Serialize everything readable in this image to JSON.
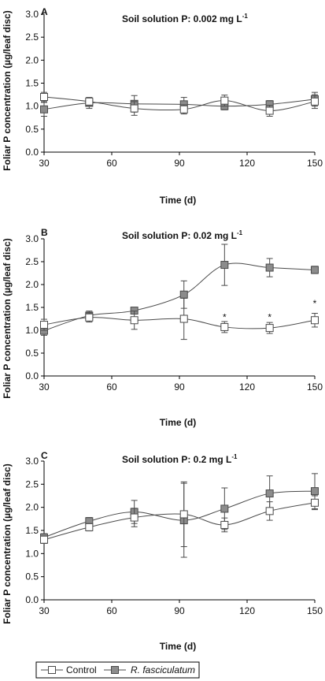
{
  "chart_data": [
    {
      "type": "line",
      "panel_label": "A",
      "title": "Soil solution P: 0.002 mg L",
      "title_superscript": "-1",
      "ylabel": "Foliar P concentration (µg/leaf disc)",
      "xlabel": "Time (d)",
      "xlim": [
        30,
        150
      ],
      "ylim": [
        0.0,
        3.0
      ],
      "xticks": [
        "30",
        "60",
        "90",
        "120",
        "150"
      ],
      "yticks": [
        "0.0",
        "0.5",
        "1.0",
        "1.5",
        "2.0",
        "2.5",
        "3.0"
      ],
      "x": [
        30,
        50,
        70,
        92,
        110,
        130,
        150
      ],
      "series": [
        {
          "name": "Control",
          "marker": "open-square",
          "values": [
            1.2,
            1.1,
            0.95,
            0.93,
            1.12,
            0.9,
            1.1
          ],
          "err": [
            0.1,
            0.08,
            0.15,
            0.1,
            0.12,
            0.12,
            0.15
          ]
        },
        {
          "name": "R. fasciculatum",
          "marker": "filled-square",
          "values": [
            0.93,
            1.07,
            1.05,
            1.04,
            1.0,
            1.04,
            1.15
          ],
          "err": [
            0.15,
            0.12,
            0.18,
            0.15,
            0.08,
            0.08,
            0.15
          ]
        }
      ],
      "annotations": []
    },
    {
      "type": "line",
      "panel_label": "B",
      "title": "Soil solution P: 0.02 mg L",
      "title_superscript": "-1",
      "ylabel": "Foliar P concentration (µg/leaf disc)",
      "xlabel": "Time (d)",
      "xlim": [
        30,
        150
      ],
      "ylim": [
        0.0,
        3.0
      ],
      "xticks": [
        "30",
        "60",
        "90",
        "120",
        "150"
      ],
      "yticks": [
        "0.0",
        "0.5",
        "1.0",
        "1.5",
        "2.0",
        "2.5",
        "3.0"
      ],
      "x": [
        30,
        50,
        70,
        92,
        110,
        130,
        150
      ],
      "series": [
        {
          "name": "Control",
          "marker": "open-square",
          "values": [
            1.12,
            1.28,
            1.22,
            1.25,
            1.07,
            1.05,
            1.22
          ],
          "err": [
            0.12,
            0.1,
            0.2,
            0.45,
            0.12,
            0.12,
            0.15
          ]
        },
        {
          "name": "R. fasciculatum",
          "marker": "filled-square",
          "values": [
            0.99,
            1.32,
            1.43,
            1.78,
            2.43,
            2.37,
            2.32
          ],
          "err": [
            0.1,
            0.1,
            0.06,
            0.3,
            0.45,
            0.2,
            0.08
          ]
        }
      ],
      "annotations": [
        {
          "x": 110,
          "y": 1.32,
          "text": "*"
        },
        {
          "x": 130,
          "y": 1.32,
          "text": "*"
        },
        {
          "x": 150,
          "y": 1.62,
          "text": "*"
        }
      ]
    },
    {
      "type": "line",
      "panel_label": "C",
      "title": "Soil solution P: 0.2 mg L",
      "title_superscript": "-1",
      "ylabel": "Foliar P concentration (µg/leaf disc)",
      "xlabel": "Time (d)",
      "xlim": [
        30,
        150
      ],
      "ylim": [
        0.0,
        3.0
      ],
      "xticks": [
        "30",
        "60",
        "90",
        "120",
        "150"
      ],
      "yticks": [
        "0.0",
        "0.5",
        "1.0",
        "1.5",
        "2.0",
        "2.5",
        "3.0"
      ],
      "x": [
        30,
        50,
        70,
        92,
        110,
        130,
        150
      ],
      "series": [
        {
          "name": "Control",
          "marker": "open-square",
          "values": [
            1.3,
            1.57,
            1.78,
            1.85,
            1.62,
            1.92,
            2.1
          ],
          "err": [
            0.08,
            0.08,
            0.2,
            0.7,
            0.15,
            0.2,
            0.15
          ]
        },
        {
          "name": "R. fasciculatum",
          "marker": "filled-square",
          "values": [
            1.35,
            1.7,
            1.9,
            1.72,
            1.97,
            2.3,
            2.35
          ],
          "err": [
            0.08,
            0.08,
            0.25,
            0.8,
            0.45,
            0.38,
            0.38
          ]
        }
      ],
      "annotations": []
    }
  ],
  "legend": {
    "position": "bottom",
    "items": [
      {
        "label": "Control",
        "marker": "open-square",
        "italic": false
      },
      {
        "label": "R. fasciculatum",
        "marker": "filled-square",
        "italic": true
      }
    ]
  },
  "colors": {
    "line": "#4a4a4a",
    "open_fill": "#ffffff",
    "filled_fill": "#8c8c8c",
    "axis": "#000000"
  }
}
